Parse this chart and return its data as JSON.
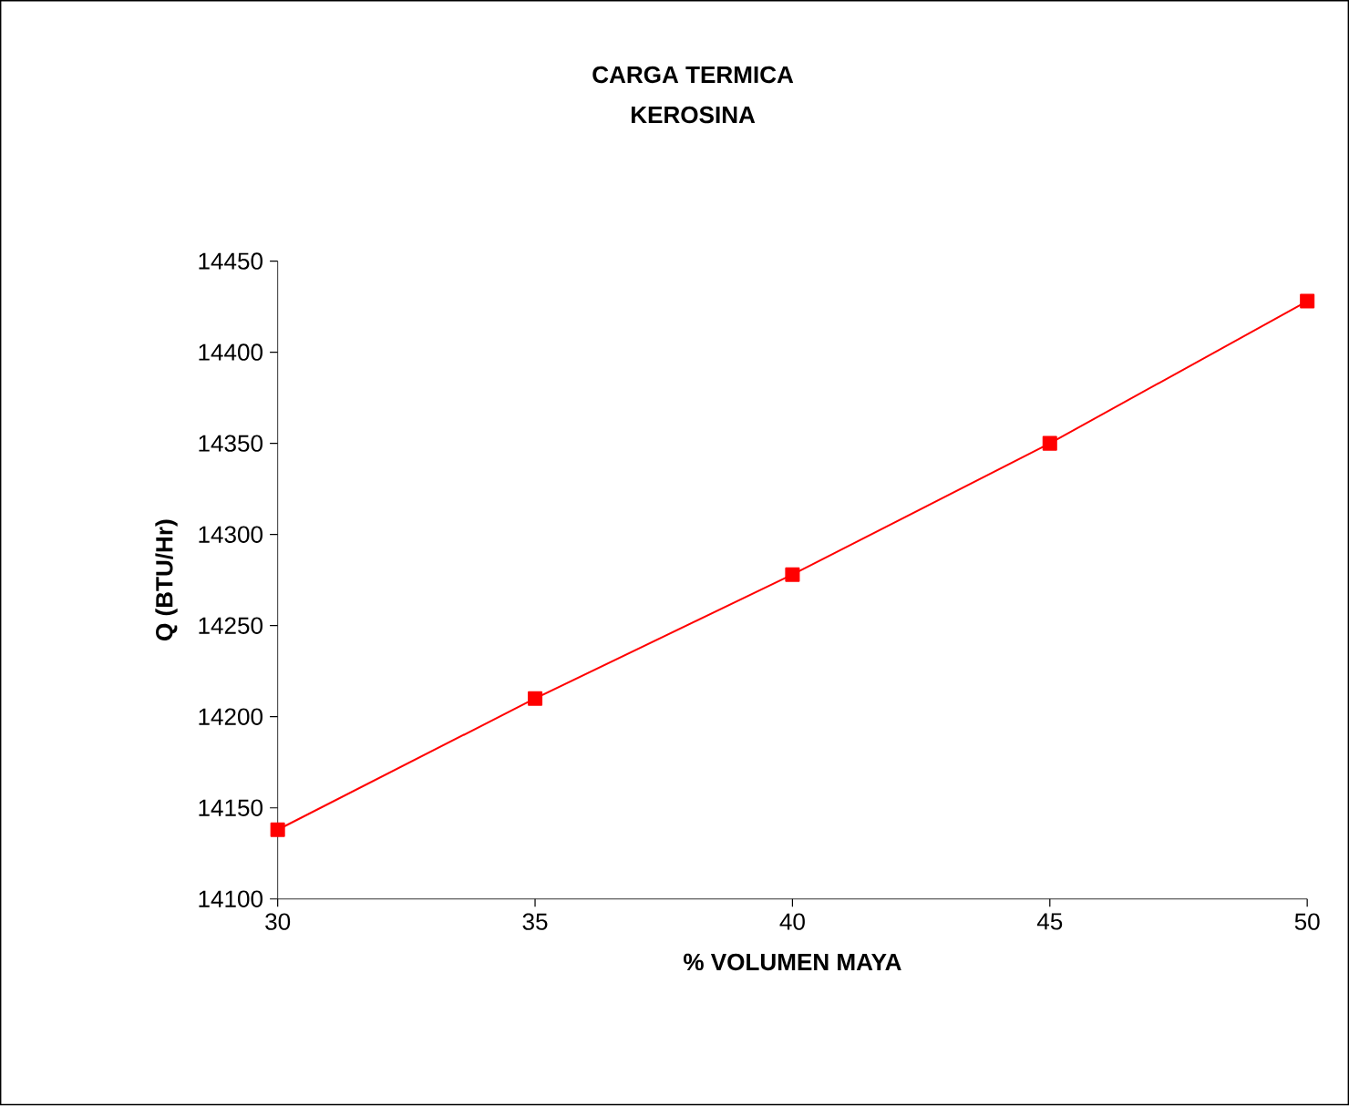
{
  "chart_data": {
    "type": "line",
    "title": "CARGA TERMICA",
    "subtitle": "KEROSINA",
    "xlabel": "% VOLUMEN MAYA",
    "ylabel": "Q (BTU/Hr)",
    "x": [
      30,
      35,
      40,
      45,
      50
    ],
    "series": [
      {
        "color": "#ff0000",
        "values": [
          14138,
          14210,
          14278,
          14350,
          14428
        ]
      }
    ],
    "xlim": [
      30,
      50
    ],
    "xticks": [
      30,
      35,
      40,
      45,
      50
    ],
    "ylim": [
      14100,
      14450
    ],
    "yticks": [
      14100,
      14150,
      14200,
      14250,
      14300,
      14350,
      14400,
      14450
    ],
    "grid": false,
    "marker": "square",
    "line_style": "solid"
  }
}
